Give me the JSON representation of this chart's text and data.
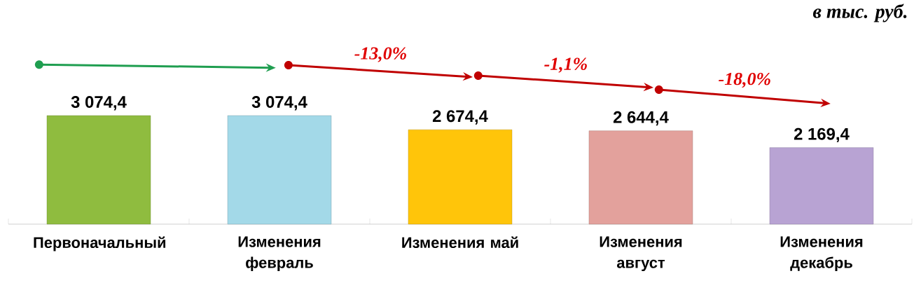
{
  "chart_data": {
    "type": "bar",
    "subtitle": "в тыс. руб.",
    "categories": [
      "Первоначальный",
      "Изменения февраль",
      "Изменения май",
      "Изменения август",
      "Изменения декабрь"
    ],
    "values": [
      3074.4,
      3074.4,
      2674.4,
      2644.4,
      2169.4
    ],
    "colors": [
      "#8fbc3f",
      "#a3d9e8",
      "#ffc50a",
      "#e3a19c",
      "#b8a3d3"
    ],
    "value_labels": [
      "3 074,4",
      "3 074,4",
      "2 674,4",
      "2 644,4",
      "2 169,4"
    ],
    "annotations": [
      "-13,0%",
      "-1,1%",
      "-18,0%"
    ]
  }
}
